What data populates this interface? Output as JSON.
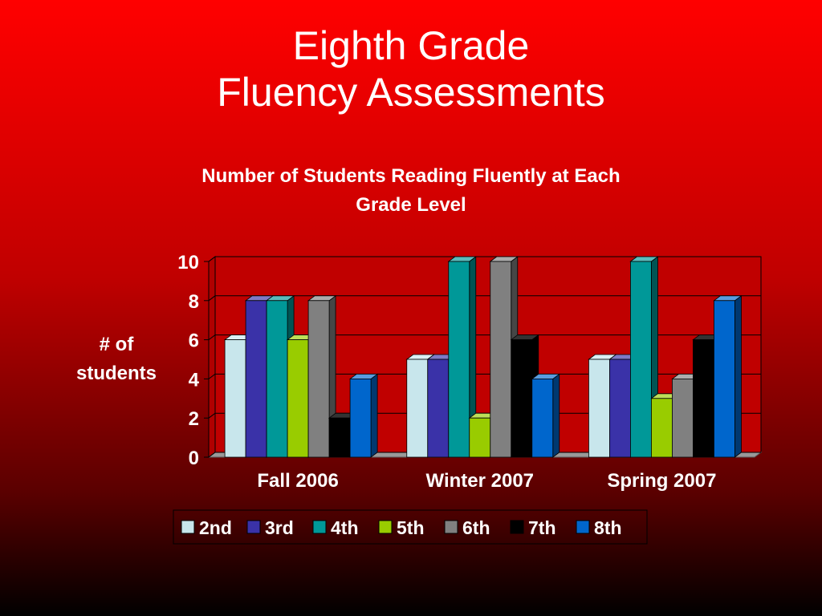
{
  "slide": {
    "title_line1": "Eighth Grade",
    "title_line2": "Fluency Assessments"
  },
  "chart_data": {
    "type": "bar",
    "title_line1": "Number of Students Reading Fluently at Each",
    "title_line2": "Grade Level",
    "ylabel_line1": "# of",
    "ylabel_line2": "students",
    "xlabel": "",
    "ylim": [
      0,
      10
    ],
    "yticks": [
      0,
      2,
      4,
      6,
      8,
      10
    ],
    "grid": true,
    "legend_position": "bottom",
    "categories": [
      "Fall 2006",
      "Winter 2007",
      "Spring 2007"
    ],
    "series": [
      {
        "name": "2nd",
        "color": "#c8e6ec",
        "values": [
          6,
          5,
          5
        ]
      },
      {
        "name": "3rd",
        "color": "#3a32a8",
        "values": [
          8,
          5,
          5
        ]
      },
      {
        "name": "4th",
        "color": "#009898",
        "values": [
          8,
          10,
          10
        ]
      },
      {
        "name": "5th",
        "color": "#99cc00",
        "values": [
          6,
          2,
          3
        ]
      },
      {
        "name": "6th",
        "color": "#808080",
        "values": [
          8,
          10,
          4
        ]
      },
      {
        "name": "7th",
        "color": "#000000",
        "values": [
          2,
          6,
          6
        ]
      },
      {
        "name": "8th",
        "color": "#0066cc",
        "values": [
          4,
          4,
          8
        ]
      }
    ]
  }
}
